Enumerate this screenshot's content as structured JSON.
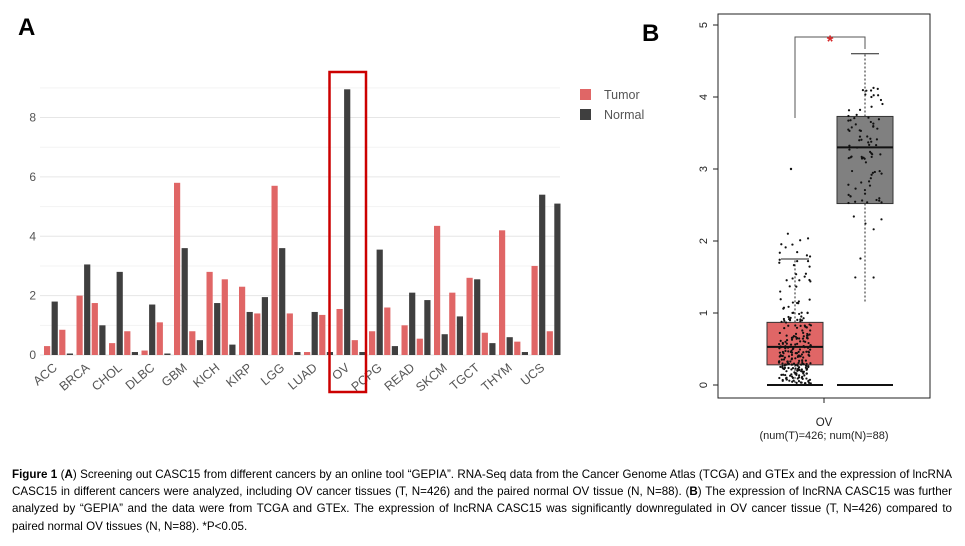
{
  "panel_a_label": "A",
  "panel_b_label": "B",
  "chart_data": [
    {
      "panel": "A",
      "type": "bar",
      "title": "",
      "xlabel": "",
      "ylabel": "",
      "ylim": [
        0,
        9.6
      ],
      "yticks": [
        "0",
        "2",
        "4",
        "6",
        "8"
      ],
      "categories": [
        "ACC",
        "BRCA",
        "CHOL",
        "DLBC",
        "GBM",
        "KICH",
        "KIRP",
        "LGG",
        "LUAD",
        "OV",
        "PCPG",
        "READ",
        "SKCM",
        "TGCT",
        "THYM",
        "UCS"
      ],
      "series": [
        {
          "name": "Tumor",
          "color": "#e06666",
          "values": [
            0.3,
            2.0,
            0.4,
            0.15,
            5.8,
            2.8,
            2.3,
            5.7,
            0.1,
            1.55,
            0.8,
            1.0,
            4.35,
            2.6,
            4.2,
            3.0
          ]
        },
        {
          "name": "Normal",
          "color": "#3f3f3f",
          "values": [
            1.8,
            3.05,
            2.8,
            1.7,
            3.6,
            1.75,
            1.45,
            3.6,
            1.45,
            8.95,
            3.55,
            2.1,
            0.7,
            2.55,
            0.6,
            5.4
          ]
        }
      ],
      "extra_bars_tumor": [
        0.85,
        1.75,
        0.8,
        1.1,
        0.8,
        2.55,
        1.4,
        1.4,
        1.35,
        0.5,
        1.6,
        0.55,
        2.1,
        0.75,
        0.45,
        0.8
      ],
      "extra_bars_normal": [
        0.05,
        1.0,
        0.1,
        0.05,
        0.5,
        0.35,
        1.95,
        0.1,
        0.1,
        0.1,
        0.3,
        1.85,
        1.3,
        0.4,
        0.1,
        5.1
      ],
      "legend": [
        "Tumor",
        "Normal"
      ],
      "legend_position": "top-right",
      "highlight": "OV"
    },
    {
      "panel": "B",
      "type": "box",
      "ylim": [
        0,
        5
      ],
      "yticks": [
        "0",
        "1",
        "2",
        "3",
        "4",
        "5"
      ],
      "xlabel": "OV",
      "sublabel": "(num(T)=426; num(N)=88)",
      "significance": "*",
      "groups": [
        {
          "name": "Tumor",
          "color": "#e06666",
          "q1": 0.28,
          "median": 0.53,
          "q3": 0.87,
          "whisker_low": 0.0,
          "whisker_high": 1.75,
          "max_outlier": 3.0
        },
        {
          "name": "Normal",
          "color": "#808080",
          "q1": 2.52,
          "median": 3.3,
          "q3": 3.73,
          "whisker_low": 1.15,
          "whisker_high": 4.6
        }
      ]
    }
  ],
  "caption": {
    "fig_label": "Figure 1",
    "text_1": " (",
    "bold_a": "A",
    "text_2": ") Screening out CASC15 from different cancers by an online tool “GEPIA”. RNA-Seq data from the Cancer Genome Atlas (TCGA) and GTEx and the expression of lncRNA CASC15 in different cancers were analyzed, including OV cancer tissues (T, N=426) and the paired normal OV tissue (N, N=88). (",
    "bold_b": "B",
    "text_3": ") The expression of lncRNA CASC15 was further analyzed by “GEPIA” and the data were from TCGA and GTEx. The expression of lncRNA CASC15 was significantly downregulated in OV cancer tissue (T, N=426) compared to paired normal OV tissues (N, N=88). *P<0.05."
  }
}
